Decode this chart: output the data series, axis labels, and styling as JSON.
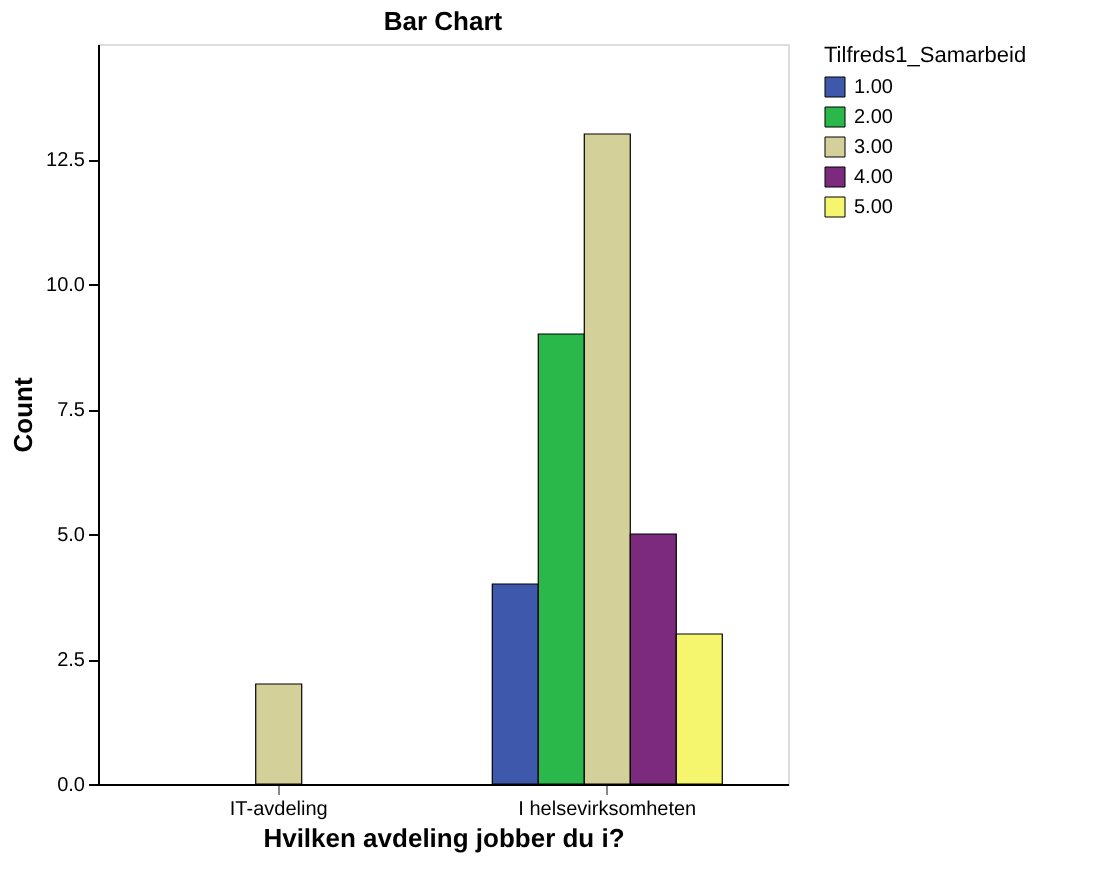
{
  "chart_data": {
    "type": "bar",
    "title": "Bar Chart",
    "xlabel": "Hvilken avdeling jobber du i?",
    "ylabel": "Count",
    "legend_title": "Tilfreds1_Samarbeid",
    "categories": [
      "IT-avdeling",
      "I helsevirksomheten"
    ],
    "series": [
      {
        "name": "1.00",
        "color": "#3e58ac",
        "values": [
          null,
          4
        ]
      },
      {
        "name": "2.00",
        "color": "#2bb84a",
        "values": [
          null,
          9
        ]
      },
      {
        "name": "3.00",
        "color": "#d4d09a",
        "values": [
          2,
          13
        ]
      },
      {
        "name": "4.00",
        "color": "#7c2a7e",
        "values": [
          null,
          5
        ]
      },
      {
        "name": "5.00",
        "color": "#f6f56e",
        "values": [
          null,
          3
        ]
      }
    ],
    "ylim": [
      0,
      14.8
    ],
    "yticks": [
      {
        "value": 0,
        "label": "0.0"
      },
      {
        "value": 2.5,
        "label": "2.5"
      },
      {
        "value": 5,
        "label": "5.0"
      },
      {
        "value": 7.5,
        "label": "7.5"
      },
      {
        "value": 10,
        "label": "10.0"
      },
      {
        "value": 12.5,
        "label": "12.5"
      }
    ],
    "grid": false,
    "legend": "top right"
  }
}
